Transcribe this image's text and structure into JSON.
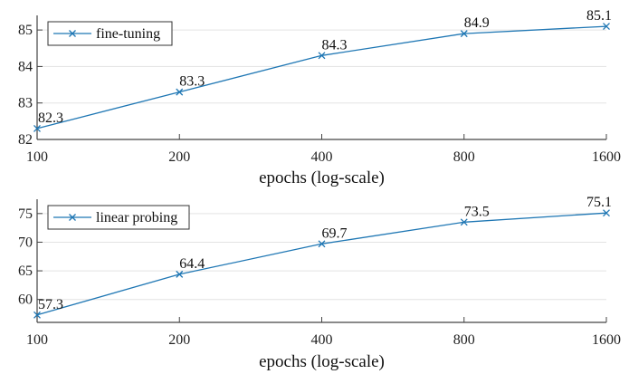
{
  "chart_data": [
    {
      "type": "line",
      "title": "",
      "xlabel": "epochs (log-scale)",
      "ylabel": "",
      "xscale": "log",
      "x": [
        100,
        200,
        400,
        800,
        1600
      ],
      "xtick_labels": [
        "100",
        "200",
        "400",
        "800",
        "1600"
      ],
      "ylim": [
        82,
        85.4
      ],
      "yticks": [
        82,
        83,
        84,
        85
      ],
      "ytick_labels": [
        "82",
        "83",
        "84",
        "85"
      ],
      "grid": "horizontal",
      "legend": "top-left",
      "series": [
        {
          "name": "fine-tuning",
          "values": [
            82.3,
            83.3,
            84.3,
            84.9,
            85.1
          ],
          "labels": [
            "82.3",
            "83.3",
            "84.3",
            "84.9",
            "85.1"
          ],
          "color": "#1f77b4",
          "marker": "x"
        }
      ]
    },
    {
      "type": "line",
      "title": "",
      "xlabel": "epochs (log-scale)",
      "ylabel": "",
      "xscale": "log",
      "x": [
        100,
        200,
        400,
        800,
        1600
      ],
      "xtick_labels": [
        "100",
        "200",
        "400",
        "800",
        "1600"
      ],
      "ylim": [
        56,
        77.5
      ],
      "yticks": [
        60,
        65,
        70,
        75
      ],
      "ytick_labels": [
        "60",
        "65",
        "70",
        "75"
      ],
      "grid": "horizontal",
      "legend": "top-left",
      "series": [
        {
          "name": "linear probing",
          "values": [
            57.3,
            64.4,
            69.7,
            73.5,
            75.1
          ],
          "labels": [
            "57.3",
            "64.4",
            "69.7",
            "73.5",
            "75.1"
          ],
          "color": "#1f77b4",
          "marker": "x"
        }
      ]
    }
  ]
}
